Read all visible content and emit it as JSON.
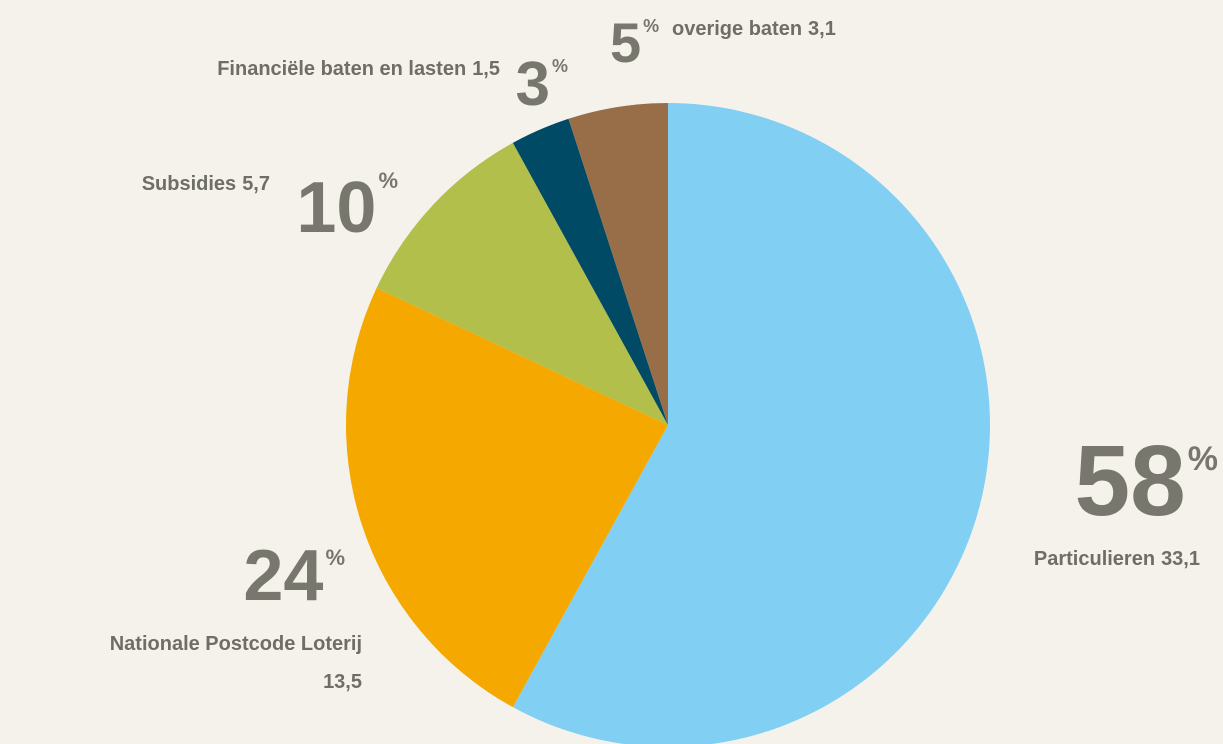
{
  "chart_data": {
    "type": "pie",
    "categories": [
      "Particulieren",
      "Nationale Postcode Loterij",
      "Subsidies",
      "Financiële baten en lasten",
      "overige baten"
    ],
    "values": [
      58,
      24,
      10,
      3,
      5
    ],
    "unit": "%",
    "amounts": [
      33.1,
      13.5,
      5.7,
      1.5,
      3.1
    ],
    "amount_labels": [
      "33,1",
      "13,5",
      "5,7",
      "1,5",
      "3,1"
    ],
    "colors": [
      "#82cff4",
      "#f5a800",
      "#b2bf4b",
      "#004a66",
      "#976e48"
    ]
  }
}
